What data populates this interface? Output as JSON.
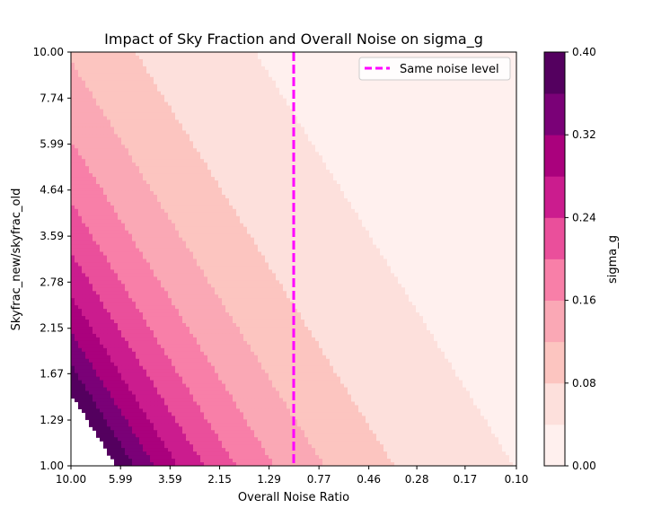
{
  "chart_data": {
    "type": "contour",
    "title": "Impact of Sky Fraction and Overall Noise on sigma_g",
    "xlabel": "Overall Noise Ratio",
    "ylabel": "Skyfrac_new/skyfrac_old",
    "x_scale": "log",
    "x_inverted": true,
    "y_scale": "log",
    "xlim": [
      10.0,
      0.1
    ],
    "ylim": [
      1.0,
      10.0
    ],
    "x_ticks": [
      "10.00",
      "5.99",
      "3.59",
      "2.15",
      "1.29",
      "0.77",
      "0.46",
      "0.28",
      "0.17",
      "0.10"
    ],
    "x_tick_values": [
      10.0,
      5.99,
      3.59,
      2.15,
      1.29,
      0.77,
      0.46,
      0.28,
      0.17,
      0.1
    ],
    "y_ticks": [
      "1.00",
      "1.29",
      "1.67",
      "2.15",
      "2.78",
      "3.59",
      "4.64",
      "5.99",
      "7.74",
      "10.00"
    ],
    "y_tick_values": [
      1.0,
      1.29,
      1.67,
      2.15,
      2.78,
      3.59,
      4.64,
      5.99,
      7.74,
      10.0
    ],
    "levels": [
      0.0,
      0.04,
      0.08,
      0.12,
      0.16,
      0.2,
      0.24,
      0.28,
      0.32,
      0.36,
      0.4
    ],
    "level_colors": [
      "#fff0ee",
      "#fde0dc",
      "#fcc5c0",
      "#faa8b5",
      "#f87fa8",
      "#ea4f9b",
      "#cb1c8e",
      "#aa017d",
      "#7a0177",
      "#54005f"
    ],
    "colorbar": {
      "label": "sigma_g",
      "ticks": [
        "0.00",
        "0.08",
        "0.16",
        "0.24",
        "0.32",
        "0.40"
      ],
      "tick_values": [
        0.0,
        0.08,
        0.16,
        0.24,
        0.32,
        0.4
      ]
    },
    "reference_line": {
      "x": 1.0,
      "label": "Same noise level",
      "color": "#ff00ff",
      "style": "dashed"
    },
    "legend": {
      "position": "top-right"
    },
    "grid": false
  }
}
